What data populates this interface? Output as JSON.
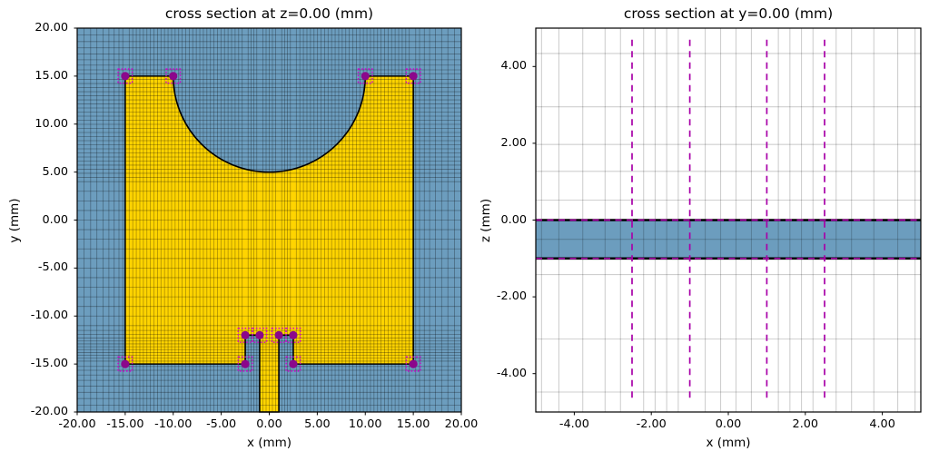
{
  "chart_data": [
    {
      "type": "cross_section",
      "plane": "xy",
      "title": "cross section at z=0.00 (mm)",
      "xlabel": "x (mm)",
      "ylabel": "y (mm)",
      "xlim": [
        -20,
        20
      ],
      "ylim": [
        -20,
        20
      ],
      "xticks": {
        "values": [
          -20,
          -15,
          -10,
          -5,
          0,
          5,
          10,
          15,
          20
        ],
        "labels": [
          "-20.00",
          "-15.00",
          "-10.00",
          "-5.00",
          "0.00",
          "5.00",
          "10.00",
          "15.00",
          "20.00"
        ]
      },
      "yticks": {
        "values": [
          20,
          15,
          10,
          5,
          0,
          -5,
          -10,
          -15,
          -20
        ],
        "labels": [
          "20.00",
          "15.00",
          "10.00",
          "5.00",
          "0.00",
          "-5.00",
          "-10.00",
          "-15.00",
          "-20.00"
        ]
      },
      "grid": true,
      "colors": {
        "substrate": "#6C9DBE",
        "metal": "#FFD400",
        "outline": "#000000",
        "mesh": "rgba(0,0,0,0.32)",
        "marker": "#8B078B",
        "marker_box": "#CC00CC"
      },
      "outline": [
        [
          -15,
          15
        ],
        [
          -10,
          15
        ],
        {
          "arc": {
            "r": 10,
            "to": [
              10,
              15
            ],
            "sweep": 0
          }
        },
        [
          15,
          15
        ],
        [
          15,
          -15
        ],
        [
          2.5,
          -15
        ],
        [
          2.5,
          -12
        ],
        [
          1,
          -12
        ],
        [
          1,
          -20
        ],
        [
          -1,
          -20
        ],
        [
          -1,
          -12
        ],
        [
          -2.5,
          -12
        ],
        [
          -2.5,
          -15
        ],
        [
          -15,
          -15
        ]
      ],
      "geometry": {
        "patch_rect_x": [
          -15,
          15
        ],
        "patch_rect_y": [
          -15,
          15
        ],
        "circle_cutout": {
          "cx": 0,
          "cy": 15,
          "r": 10
        },
        "notches": [
          {
            "x": [
              -2.5,
              -1
            ],
            "y": [
              -15,
              -12
            ]
          },
          {
            "x": [
              1,
              2.5
            ],
            "y": [
              -15,
              -12
            ]
          }
        ],
        "feed_line": {
          "x": [
            -1,
            1
          ],
          "y": [
            -20,
            -12
          ]
        }
      },
      "markers": [
        [
          -15,
          15
        ],
        [
          -10,
          15
        ],
        [
          10,
          15
        ],
        [
          15,
          15
        ],
        [
          -2.5,
          -12
        ],
        [
          -1,
          -12
        ],
        [
          1,
          -12
        ],
        [
          2.5,
          -12
        ],
        [
          -2.5,
          -15
        ],
        [
          2.5,
          -15
        ],
        [
          -15,
          -15
        ],
        [
          15,
          -15
        ]
      ],
      "mesh_x": {
        "explicit": [
          -19.3,
          -18.6,
          -17.95,
          -17.3,
          -16.7,
          -16.15,
          -15.65,
          -15.25,
          -2.2,
          -1.9,
          -1.6,
          -1.3,
          -0.67,
          -0.33,
          0,
          0.33,
          0.67,
          1.3,
          1.6,
          1.9,
          2.2,
          15.25,
          15.65,
          16.15,
          16.7,
          17.3,
          17.95,
          18.6,
          19.3
        ],
        "uniform": [
          [
            -14.58,
            -2.82,
            0.3675
          ],
          [
            2.82,
            14.58,
            0.3675
          ]
        ]
      },
      "mesh_y": {
        "explicit": [
          -19.3,
          -18.6,
          -17.95,
          -17.3,
          -16.7,
          -16.15,
          -15.65,
          -15.25,
          -14.7,
          -14.4,
          -14.1,
          -13.8,
          -13.5,
          -13.2,
          -12.9,
          -12.6,
          -12.3,
          -11.9,
          -11.5,
          15.25,
          15.65,
          16.15,
          16.7,
          17.3,
          17.95,
          18.6,
          19.3
        ],
        "uniform": [
          [
            -11.0,
            4.0,
            1.0
          ],
          [
            4.45,
            14.65,
            0.425
          ]
        ]
      }
    },
    {
      "type": "cross_section",
      "plane": "xz",
      "title": "cross section at y=0.00 (mm)",
      "xlabel": "x (mm)",
      "ylabel": "z (mm)",
      "xlim": [
        -5,
        5
      ],
      "ylim": [
        -5,
        5
      ],
      "xticks": {
        "values": [
          -4,
          -2,
          0,
          2,
          4
        ],
        "labels": [
          "-4.00",
          "-2.00",
          "0.00",
          "2.00",
          "4.00"
        ]
      },
      "yticks": {
        "values": [
          4,
          2,
          0,
          -2,
          -4
        ],
        "labels": [
          "4.00",
          "2.00",
          "0.00",
          "-2.00",
          "-4.00"
        ]
      },
      "grid": true,
      "colors": {
        "background": "#FFFFFF",
        "substrate": "#6C9DBE",
        "mesh": "rgba(0,0,0,0.19)",
        "metal_line": "#000000",
        "dashed": "#A800A8"
      },
      "slab": {
        "x": [
          -5,
          5
        ],
        "z": [
          -1,
          0
        ]
      },
      "metal_lines_z": [
        0,
        -1
      ],
      "dashed_horizontal_z": [
        0,
        -1
      ],
      "dashed_vertical_x": [
        -2.5,
        -1,
        1,
        2.5
      ],
      "dashed_vertical_span": [
        -4.7,
        4.7
      ],
      "mesh_x": {
        "explicit": [
          -4.85,
          -4.4,
          -3.78,
          -3.2,
          -2.8,
          -2.2,
          -1.9,
          -1.6,
          -1.3,
          -0.6,
          -0.2,
          0.2,
          0.6,
          1.3,
          1.6,
          1.9,
          2.2,
          2.8,
          3.2,
          3.78,
          4.4,
          4.85
        ],
        "uniform": []
      },
      "mesh_y": {
        "explicit": [
          -4.48,
          -3.1,
          -1.42,
          -0.5,
          0.52,
          1.27,
          1.97,
          2.95,
          4.34
        ],
        "uniform": []
      }
    }
  ]
}
